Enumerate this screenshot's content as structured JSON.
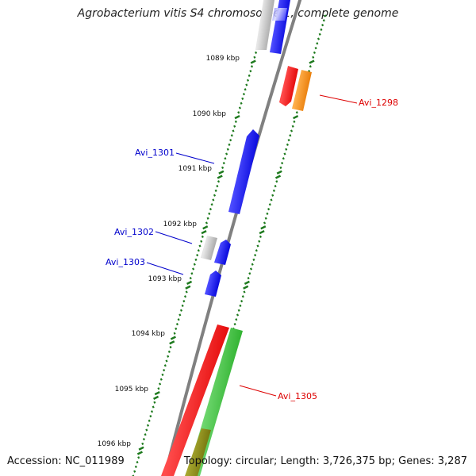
{
  "title": "Agrobacterium vitis S4 chromosome 1, complete genome",
  "footer": {
    "accession": "Accession: NC_011989",
    "summary": "Topology: circular; Length: 3,726,375 bp; Genes: 3,287"
  },
  "scale_labels": [
    "1089 kbp",
    "1090 kbp",
    "1091 kbp",
    "1092 kbp",
    "1093 kbp",
    "1094 kbp",
    "1095 kbp",
    "1096 kbp"
  ],
  "gene_labels": [
    {
      "text": "Avi_1298",
      "color": "#dd0000"
    },
    {
      "text": "Avi_1301",
      "color": "#0000cc"
    },
    {
      "text": "Avi_1302",
      "color": "#0000cc"
    },
    {
      "text": "Avi_1303",
      "color": "#0000cc"
    },
    {
      "text": "Avi_1305",
      "color": "#dd0000"
    }
  ],
  "colors": {
    "backbone": "#808080",
    "tick": "#1e7a1e",
    "feature_blue": "#0000ff",
    "feature_red": "#ff0000",
    "feature_orange": "#ff8c00",
    "feature_green": "#33cc33",
    "feature_grey": "#b4b4b4"
  }
}
